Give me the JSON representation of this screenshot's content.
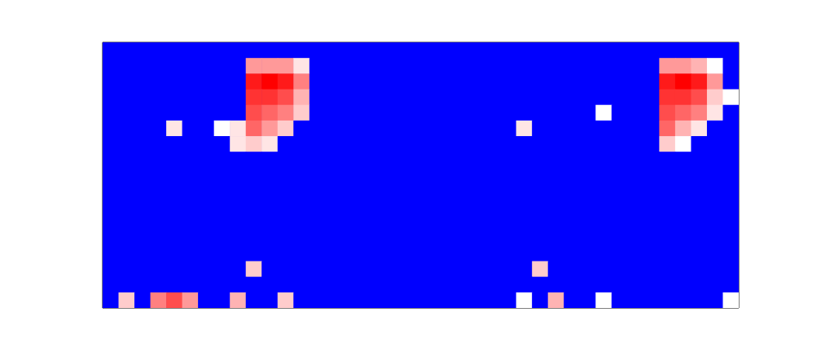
{
  "chart_data": {
    "type": "heatmap",
    "tick_labels": false,
    "xlim": [
      0,
      40
    ],
    "ylim": [
      0,
      17
    ],
    "zlim": [
      0,
      1
    ],
    "cells": [
      [
        0,
        0,
        0,
        0,
        0,
        0,
        0,
        0,
        0,
        0,
        0,
        0,
        0,
        0,
        0,
        0,
        0,
        0,
        0,
        0,
        0,
        0,
        0,
        0,
        0,
        0,
        0,
        0,
        0,
        0,
        0,
        0,
        0,
        0,
        0,
        0,
        0,
        0,
        0,
        0
      ],
      [
        0,
        0,
        0,
        0,
        0,
        0,
        0,
        0,
        0,
        0.7,
        0.7,
        0.7,
        0.55,
        0,
        0,
        0,
        0,
        0,
        0,
        0,
        0,
        0,
        0,
        0,
        0,
        0,
        0,
        0,
        0,
        0,
        0,
        0,
        0,
        0,
        0,
        0.7,
        0.7,
        0.65,
        0.5,
        0
      ],
      [
        0,
        0,
        0,
        0,
        0,
        0,
        0,
        0,
        0,
        0.95,
        1,
        0.95,
        0.75,
        0,
        0,
        0,
        0,
        0,
        0,
        0,
        0,
        0,
        0,
        0,
        0,
        0,
        0,
        0,
        0,
        0,
        0,
        0,
        0,
        0,
        0,
        0.95,
        1,
        0.95,
        0.7,
        0
      ],
      [
        0,
        0,
        0,
        0,
        0,
        0,
        0,
        0,
        0,
        0.9,
        0.9,
        0.85,
        0.65,
        0,
        0,
        0,
        0,
        0,
        0,
        0,
        0,
        0,
        0,
        0,
        0,
        0,
        0,
        0,
        0,
        0,
        0,
        0,
        0,
        0,
        0,
        0.9,
        0.9,
        0.85,
        0.6,
        0.5
      ],
      [
        0,
        0,
        0,
        0,
        0,
        0,
        0,
        0,
        0,
        0.85,
        0.8,
        0.75,
        0.6,
        0,
        0,
        0,
        0,
        0,
        0,
        0,
        0,
        0,
        0,
        0,
        0,
        0,
        0,
        0,
        0,
        0,
        0,
        0.5,
        0,
        0,
        0,
        0.85,
        0.8,
        0.75,
        0.55,
        0
      ],
      [
        0,
        0,
        0,
        0,
        0.55,
        0,
        0,
        0.5,
        0.55,
        0.8,
        0.7,
        0.6,
        0,
        0,
        0,
        0,
        0,
        0,
        0,
        0,
        0,
        0,
        0,
        0,
        0,
        0,
        0.55,
        0,
        0,
        0,
        0,
        0,
        0,
        0,
        0,
        0.8,
        0.65,
        0.55,
        0,
        0
      ],
      [
        0,
        0,
        0,
        0,
        0,
        0,
        0,
        0,
        0.55,
        0.6,
        0.55,
        0,
        0,
        0,
        0,
        0,
        0,
        0,
        0,
        0,
        0,
        0,
        0,
        0,
        0,
        0,
        0,
        0,
        0,
        0,
        0,
        0,
        0,
        0,
        0,
        0.6,
        0.5,
        0,
        0,
        0
      ],
      [
        0,
        0,
        0,
        0,
        0,
        0,
        0,
        0,
        0,
        0,
        0,
        0,
        0,
        0,
        0,
        0,
        0,
        0,
        0,
        0,
        0,
        0,
        0,
        0,
        0,
        0,
        0,
        0,
        0,
        0,
        0,
        0,
        0,
        0,
        0,
        0,
        0,
        0,
        0,
        0
      ],
      [
        0,
        0,
        0,
        0,
        0,
        0,
        0,
        0,
        0,
        0,
        0,
        0,
        0,
        0,
        0,
        0,
        0,
        0,
        0,
        0,
        0,
        0,
        0,
        0,
        0,
        0,
        0,
        0,
        0,
        0,
        0,
        0,
        0,
        0,
        0,
        0,
        0,
        0,
        0,
        0
      ],
      [
        0,
        0,
        0,
        0,
        0,
        0,
        0,
        0,
        0,
        0,
        0,
        0,
        0,
        0,
        0,
        0,
        0,
        0,
        0,
        0,
        0,
        0,
        0,
        0,
        0,
        0,
        0,
        0,
        0,
        0,
        0,
        0,
        0,
        0,
        0,
        0,
        0,
        0,
        0,
        0
      ],
      [
        0,
        0,
        0,
        0,
        0,
        0,
        0,
        0,
        0,
        0,
        0,
        0,
        0,
        0,
        0,
        0,
        0,
        0,
        0,
        0,
        0,
        0,
        0,
        0,
        0,
        0,
        0,
        0,
        0,
        0,
        0,
        0,
        0,
        0,
        0,
        0,
        0,
        0,
        0,
        0
      ],
      [
        0,
        0,
        0,
        0,
        0,
        0,
        0,
        0,
        0,
        0,
        0,
        0,
        0,
        0,
        0,
        0,
        0,
        0,
        0,
        0,
        0,
        0,
        0,
        0,
        0,
        0,
        0,
        0,
        0,
        0,
        0,
        0,
        0,
        0,
        0,
        0,
        0,
        0,
        0,
        0
      ],
      [
        0,
        0,
        0,
        0,
        0,
        0,
        0,
        0,
        0,
        0,
        0,
        0,
        0,
        0,
        0,
        0,
        0,
        0,
        0,
        0,
        0,
        0,
        0,
        0,
        0,
        0,
        0,
        0,
        0,
        0,
        0,
        0,
        0,
        0,
        0,
        0,
        0,
        0,
        0,
        0
      ],
      [
        0,
        0,
        0,
        0,
        0,
        0,
        0,
        0,
        0,
        0,
        0,
        0,
        0,
        0,
        0,
        0,
        0,
        0,
        0,
        0,
        0,
        0,
        0,
        0,
        0,
        0,
        0,
        0,
        0,
        0,
        0,
        0,
        0,
        0,
        0,
        0,
        0,
        0,
        0,
        0
      ],
      [
        0,
        0,
        0,
        0,
        0,
        0,
        0,
        0,
        0,
        0.6,
        0,
        0,
        0,
        0,
        0,
        0,
        0,
        0,
        0,
        0,
        0,
        0,
        0,
        0,
        0,
        0,
        0,
        0.6,
        0,
        0,
        0,
        0,
        0,
        0,
        0,
        0,
        0,
        0,
        0,
        0
      ],
      [
        0,
        0,
        0,
        0,
        0,
        0,
        0,
        0,
        0,
        0,
        0,
        0,
        0,
        0,
        0,
        0,
        0,
        0,
        0,
        0,
        0,
        0,
        0,
        0,
        0,
        0,
        0,
        0,
        0,
        0,
        0,
        0,
        0,
        0,
        0,
        0,
        0,
        0,
        0,
        0
      ],
      [
        0,
        0.6,
        0,
        0.75,
        0.85,
        0.7,
        0,
        0,
        0.65,
        0,
        0,
        0.6,
        0,
        0,
        0,
        0,
        0,
        0,
        0,
        0,
        0,
        0,
        0,
        0,
        0,
        0,
        0.5,
        0,
        0.65,
        0,
        0,
        0.5,
        0,
        0,
        0,
        0,
        0,
        0,
        0,
        0.5
      ]
    ]
  }
}
